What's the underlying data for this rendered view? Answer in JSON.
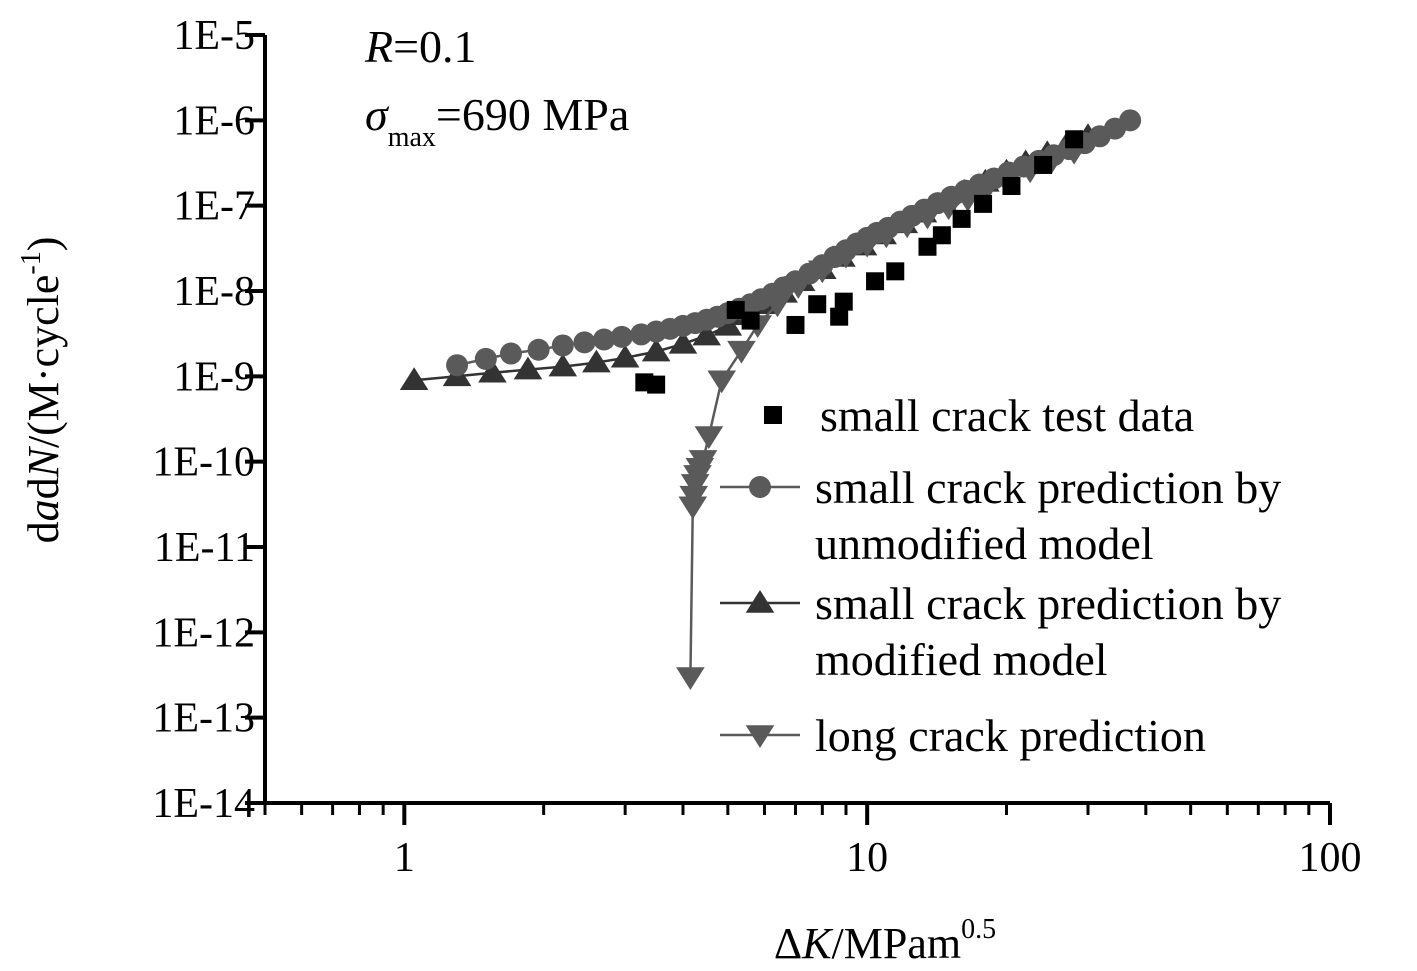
{
  "chart_data": {
    "type": "scatter",
    "x_scale": "log",
    "y_scale": "log",
    "xlim": [
      0.5,
      100
    ],
    "ylim": [
      1e-14,
      1e-05
    ],
    "x_tick_values": [
      1,
      10,
      100
    ],
    "x_tick_labels": [
      "1",
      "10",
      "100"
    ],
    "y_tick_values": [
      1e-05,
      1e-06,
      1e-07,
      1e-08,
      1e-09,
      1e-10,
      1e-11,
      1e-12,
      1e-13,
      1e-14
    ],
    "y_tick_labels": [
      "1E-5",
      "1E-6",
      "1E-7",
      "1E-8",
      "1E-9",
      "1E-10",
      "1E-11",
      "1E-12",
      "1E-13",
      "1E-14"
    ],
    "xlabel": {
      "pre": "Δ",
      "ital": "K",
      "unit": "/MPam",
      "sup": "0.5"
    },
    "ylabel": {
      "p1": "d",
      "i1": "a",
      "p2": "d",
      "i2": "N",
      "p3": "/(M·cycle",
      "sup": "-1",
      "p4": ")"
    },
    "annotations": {
      "r_var": "R",
      "r_val": "=0.1",
      "sigma": "σ",
      "sigma_sub": "max",
      "sigma_val": "=690 MPa"
    },
    "grid": false,
    "legend_position": "right",
    "series": [
      {
        "name": "small crack test data",
        "legend_lines": [
          "small crack test data"
        ],
        "marker": "square",
        "color": "#000000",
        "line": false,
        "x": [
          3.3,
          3.5,
          5.2,
          5.6,
          7.0,
          7.8,
          8.7,
          8.9,
          10.4,
          11.5,
          13.5,
          14.5,
          16.0,
          17.8,
          20.5,
          24.0,
          28.0
        ],
        "y": [
          8.5e-10,
          8e-10,
          6e-09,
          4.5e-09,
          4e-09,
          7e-09,
          5e-09,
          7.5e-09,
          1.3e-08,
          1.7e-08,
          3.3e-08,
          4.5e-08,
          7e-08,
          1.05e-07,
          1.7e-07,
          3e-07,
          6e-07
        ]
      },
      {
        "name": "small crack prediction by unmodified model",
        "legend_lines": [
          "small crack prediction by",
          "unmodified model"
        ],
        "marker": "circle",
        "color": "#5a5a5a",
        "line": true,
        "x": [
          1.3,
          1.5,
          1.7,
          1.95,
          2.2,
          2.45,
          2.7,
          2.95,
          3.25,
          3.5,
          3.75,
          4.0,
          4.25,
          4.5,
          4.75,
          5.0,
          5.3,
          5.6,
          5.9,
          6.25,
          6.6,
          7.0,
          7.5,
          8.0,
          8.5,
          9.0,
          9.5,
          10.0,
          10.5,
          11.1,
          11.8,
          12.5,
          13.3,
          14.2,
          15.2,
          16.3,
          17.5,
          18.8,
          20.2,
          21.8,
          23.5,
          25.3,
          27.3,
          29.5,
          31.8,
          34.3,
          37.0
        ],
        "y": [
          1.35e-09,
          1.6e-09,
          1.85e-09,
          2.05e-09,
          2.3e-09,
          2.5e-09,
          2.7e-09,
          2.9e-09,
          3.1e-09,
          3.35e-09,
          3.6e-09,
          3.9e-09,
          4.2e-09,
          4.6e-09,
          5e-09,
          5.5e-09,
          6.2e-09,
          7e-09,
          8e-09,
          9.3e-09,
          1.1e-08,
          1.3e-08,
          1.6e-08,
          2e-08,
          2.5e-08,
          3e-08,
          3.6e-08,
          4.2e-08,
          4.8e-08,
          5.5e-08,
          6.5e-08,
          7.6e-08,
          9e-08,
          1.07e-07,
          1.27e-07,
          1.5e-07,
          1.77e-07,
          2.08e-07,
          2.45e-07,
          2.88e-07,
          3.35e-07,
          3.9e-07,
          4.6e-07,
          5.4e-07,
          6.5e-07,
          8e-07,
          1e-06
        ]
      },
      {
        "name": "small crack prediction by modified model",
        "legend_lines": [
          "small crack prediction by",
          "modified model"
        ],
        "marker": "triangle-up",
        "color": "#333333",
        "line": true,
        "x": [
          1.05,
          1.3,
          1.55,
          1.85,
          2.2,
          2.6,
          3.0,
          3.5,
          4.0,
          4.5,
          5.0,
          5.5,
          6.0,
          6.6,
          7.2,
          8.0,
          8.8,
          9.8,
          10.8,
          12.0,
          13.2,
          14.6,
          16.2,
          18.0,
          20.0,
          22.0,
          24.5,
          27.0,
          30.0
        ],
        "y": [
          9e-10,
          1e-09,
          1.1e-09,
          1.2e-09,
          1.3e-09,
          1.45e-09,
          1.65e-09,
          1.95e-09,
          2.4e-09,
          3e-09,
          3.9e-09,
          5.2e-09,
          7e-09,
          9.5e-09,
          1.3e-08,
          1.8e-08,
          2.5e-08,
          3.4e-08,
          4.6e-08,
          6.2e-08,
          8.3e-08,
          1.1e-07,
          1.45e-07,
          1.9e-07,
          2.5e-07,
          3.2e-07,
          4.1e-07,
          5.2e-07,
          6.5e-07
        ]
      },
      {
        "name": "long crack prediction",
        "legend_lines": [
          "long crack prediction"
        ],
        "marker": "triangle-down",
        "color": "#5a5a5a",
        "line": true,
        "x": [
          4.15,
          4.2,
          4.22,
          4.25,
          4.3,
          4.35,
          4.42,
          4.55,
          4.85,
          5.35,
          5.8,
          6.4,
          7.1,
          8.0,
          9.0,
          10.0,
          11.0,
          12.2,
          13.5,
          15.0,
          16.5,
          18.0,
          20.0,
          22.5,
          25.0,
          28.0
        ],
        "y": [
          3e-13,
          3e-11,
          4e-11,
          5.5e-11,
          7e-11,
          8.5e-11,
          1.05e-10,
          2e-10,
          9e-10,
          2e-09,
          4e-09,
          7e-09,
          1.15e-08,
          1.75e-08,
          2.6e-08,
          3.5e-08,
          4.5e-08,
          5.9e-08,
          7.5e-08,
          9.6e-08,
          1.2e-07,
          1.5e-07,
          1.95e-07,
          2.6e-07,
          3.3e-07,
          4.3e-07
        ]
      }
    ]
  }
}
